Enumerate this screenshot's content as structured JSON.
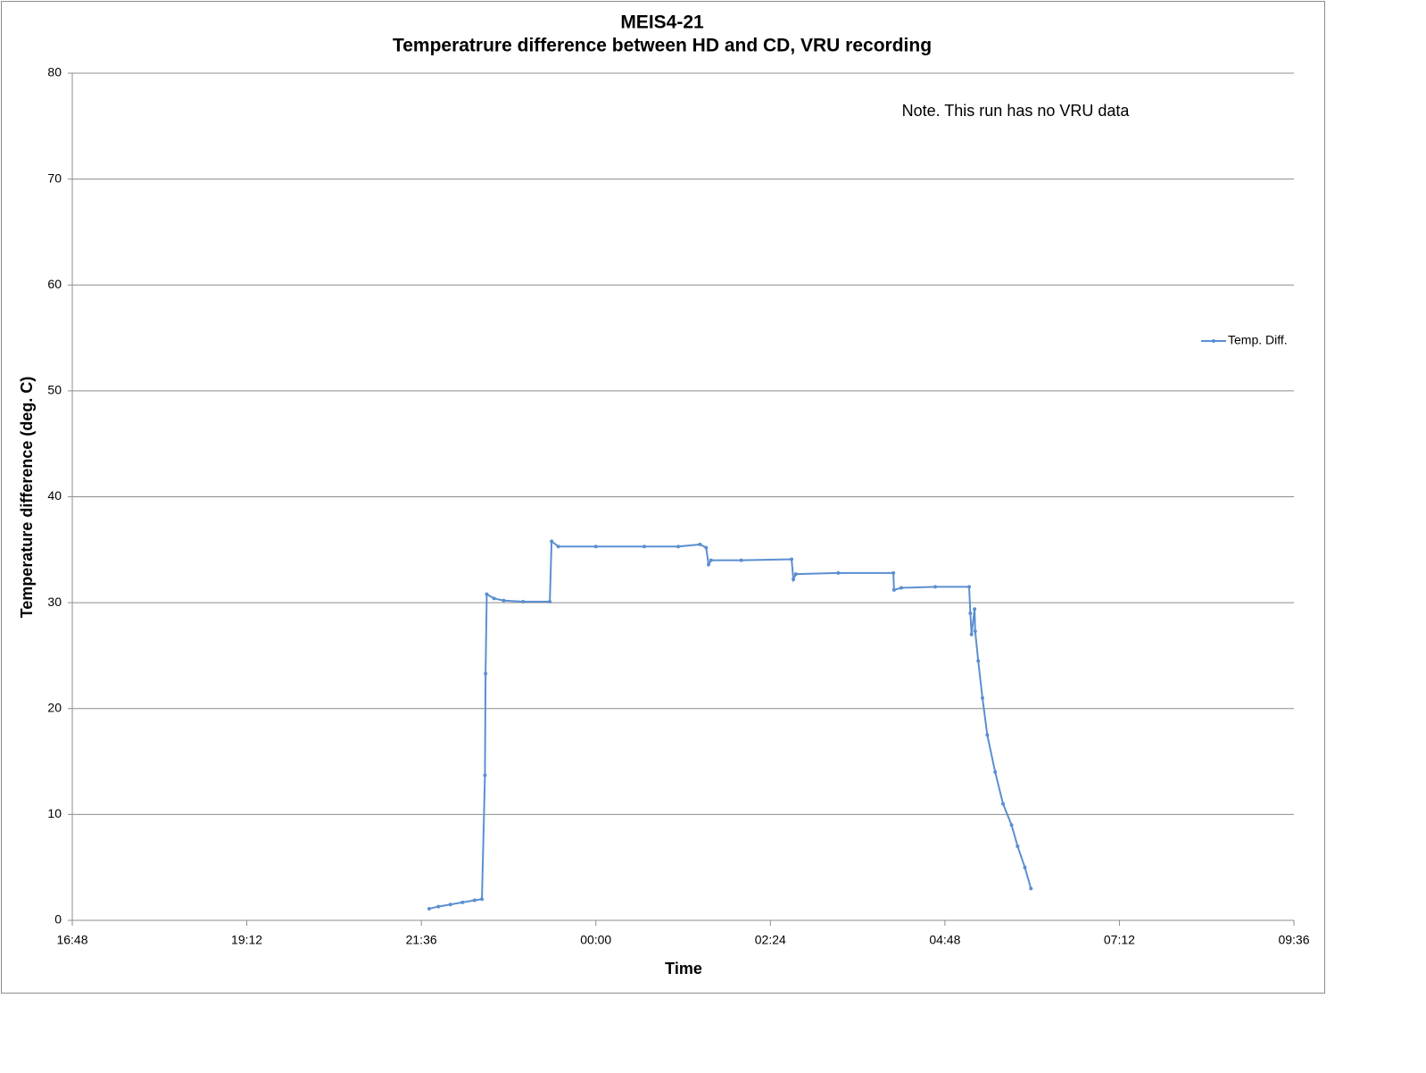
{
  "chart_data": {
    "type": "line",
    "title": "MEIS4-21",
    "subtitle": "Temperatrure difference between HD and CD, VRU recording",
    "x_label": "Time",
    "y_label": "Temperature difference (deg. C)",
    "annotation": "Note. This run has no VRU data",
    "xlim": [
      1008,
      2016
    ],
    "xticks": [
      {
        "value": 1008,
        "label": "16:48"
      },
      {
        "value": 1152,
        "label": "19:12"
      },
      {
        "value": 1296,
        "label": "21:36"
      },
      {
        "value": 1440,
        "label": "00:00"
      },
      {
        "value": 1584,
        "label": "02:24"
      },
      {
        "value": 1728,
        "label": "04:48"
      },
      {
        "value": 1872,
        "label": "07:12"
      },
      {
        "value": 2016,
        "label": "09:36"
      }
    ],
    "ylim": [
      0,
      80
    ],
    "yticks": [
      0,
      10,
      20,
      30,
      40,
      50,
      60,
      70,
      80
    ],
    "grid": true,
    "legend": "right",
    "x": [
      1302.5,
      1310,
      1320,
      1330,
      1340,
      1346,
      1348.5,
      1349,
      1350,
      1356,
      1364,
      1380,
      1402,
      1403.5,
      1409,
      1440,
      1480,
      1508,
      1526,
      1531,
      1533,
      1535,
      1560,
      1601.5,
      1603,
      1605,
      1640,
      1685.5,
      1686,
      1692,
      1720,
      1748,
      1749,
      1750,
      1752.5,
      1753,
      1755.5,
      1759,
      1763,
      1769.5,
      1776,
      1783,
      1788,
      1794,
      1799
    ],
    "series": [
      {
        "name": "Temp. Diff.",
        "color": "#5b8fd1",
        "values": [
          1.1,
          1.3,
          1.5,
          1.7,
          1.9,
          2.0,
          13.7,
          23.3,
          30.8,
          30.4,
          30.2,
          30.1,
          30.1,
          35.8,
          35.3,
          35.3,
          35.3,
          35.3,
          35.5,
          35.2,
          33.6,
          34.0,
          34.0,
          34.1,
          32.2,
          32.7,
          32.8,
          32.8,
          31.2,
          31.4,
          31.5,
          31.5,
          29.0,
          27.0,
          29.4,
          27.3,
          24.5,
          21.0,
          17.5,
          14.0,
          11.0,
          9.0,
          7.0,
          5.0,
          3.0
        ]
      }
    ]
  }
}
